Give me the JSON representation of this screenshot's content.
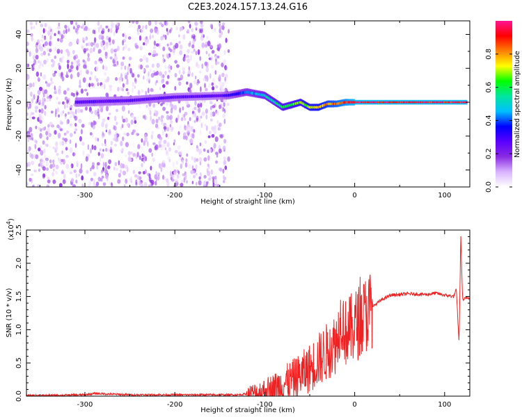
{
  "figure_title": "C2E3.2024.157.13.24.G16",
  "chart_data": [
    {
      "type": "heatmap",
      "title": "",
      "xlabel": "Height of straight line (km)",
      "ylabel": "Frequency (Hz)",
      "xlim": [
        -365,
        128
      ],
      "ylim": [
        -50,
        48
      ],
      "xticks": [
        -300,
        -200,
        -100,
        0,
        100
      ],
      "yticks": [
        -40,
        -20,
        0,
        20,
        40
      ],
      "colorbar": {
        "label": "Normalized spectral amplitude",
        "range": [
          0,
          1
        ],
        "ticks": [
          "0.0",
          "0.2",
          "0.4",
          "0.6",
          "0.8"
        ],
        "colormap": [
          "#ffffff",
          "#d9b3ff",
          "#8a2be2",
          "#5a00ff",
          "#0000ff",
          "#00bfff",
          "#00e5a0",
          "#00ff00",
          "#ffff00",
          "#ff8000",
          "#ff0000",
          "#ff1493"
        ]
      },
      "features": [
        {
          "name": "scattered noise",
          "x_range": [
            -365,
            -140
          ],
          "y_range": [
            -50,
            48
          ],
          "amplitude": 0.1
        },
        {
          "name": "signal trace",
          "points": [
            [
              -310,
              0
            ],
            [
              -250,
              1
            ],
            [
              -200,
              3
            ],
            [
              -140,
              4
            ],
            [
              -120,
              6
            ],
            [
              -100,
              4
            ],
            [
              -80,
              -3
            ],
            [
              -60,
              0
            ],
            [
              -50,
              -3
            ],
            [
              -40,
              -3
            ],
            [
              -30,
              -1
            ],
            [
              -20,
              -1
            ],
            [
              -10,
              0
            ],
            [
              0,
              0
            ],
            [
              50,
              0
            ],
            [
              100,
              0
            ],
            [
              125,
              0
            ]
          ],
          "amplitude_start": 0.3,
          "amplitude_end": 1.0
        }
      ]
    },
    {
      "type": "line",
      "title": "",
      "xlabel": "Height of straight line (km)",
      "ylabel": "SNR (10 * v/v)",
      "y_multiplier": "(x10^4)",
      "xlim": [
        -365,
        128
      ],
      "ylim": [
        0,
        2.5
      ],
      "xticks": [
        -300,
        -200,
        -100,
        0,
        100
      ],
      "yticks": [
        "0.0",
        "0.5",
        "1.0",
        "1.5",
        "2.0",
        "2.5"
      ],
      "series": [
        {
          "color": "#ee2222",
          "x": [
            -365,
            -340,
            -300,
            -290,
            -250,
            -200,
            -150,
            -130,
            -110,
            -100,
            -90,
            -80,
            -70,
            -60,
            -50,
            -40,
            -30,
            -20,
            -15,
            -10,
            0,
            10,
            20,
            30,
            40,
            60,
            80,
            90,
            100,
            110,
            113,
            116,
            118,
            120,
            125
          ],
          "y": [
            0.01,
            0.01,
            0.02,
            0.04,
            0.02,
            0.02,
            0.02,
            0.02,
            0.05,
            0.08,
            0.12,
            0.18,
            0.24,
            0.32,
            0.42,
            0.55,
            0.68,
            0.82,
            1.2,
            0.95,
            1.05,
            1.2,
            1.35,
            1.45,
            1.52,
            1.54,
            1.53,
            1.55,
            1.52,
            1.5,
            1.6,
            0.8,
            2.4,
            1.45,
            1.48
          ]
        }
      ]
    }
  ]
}
